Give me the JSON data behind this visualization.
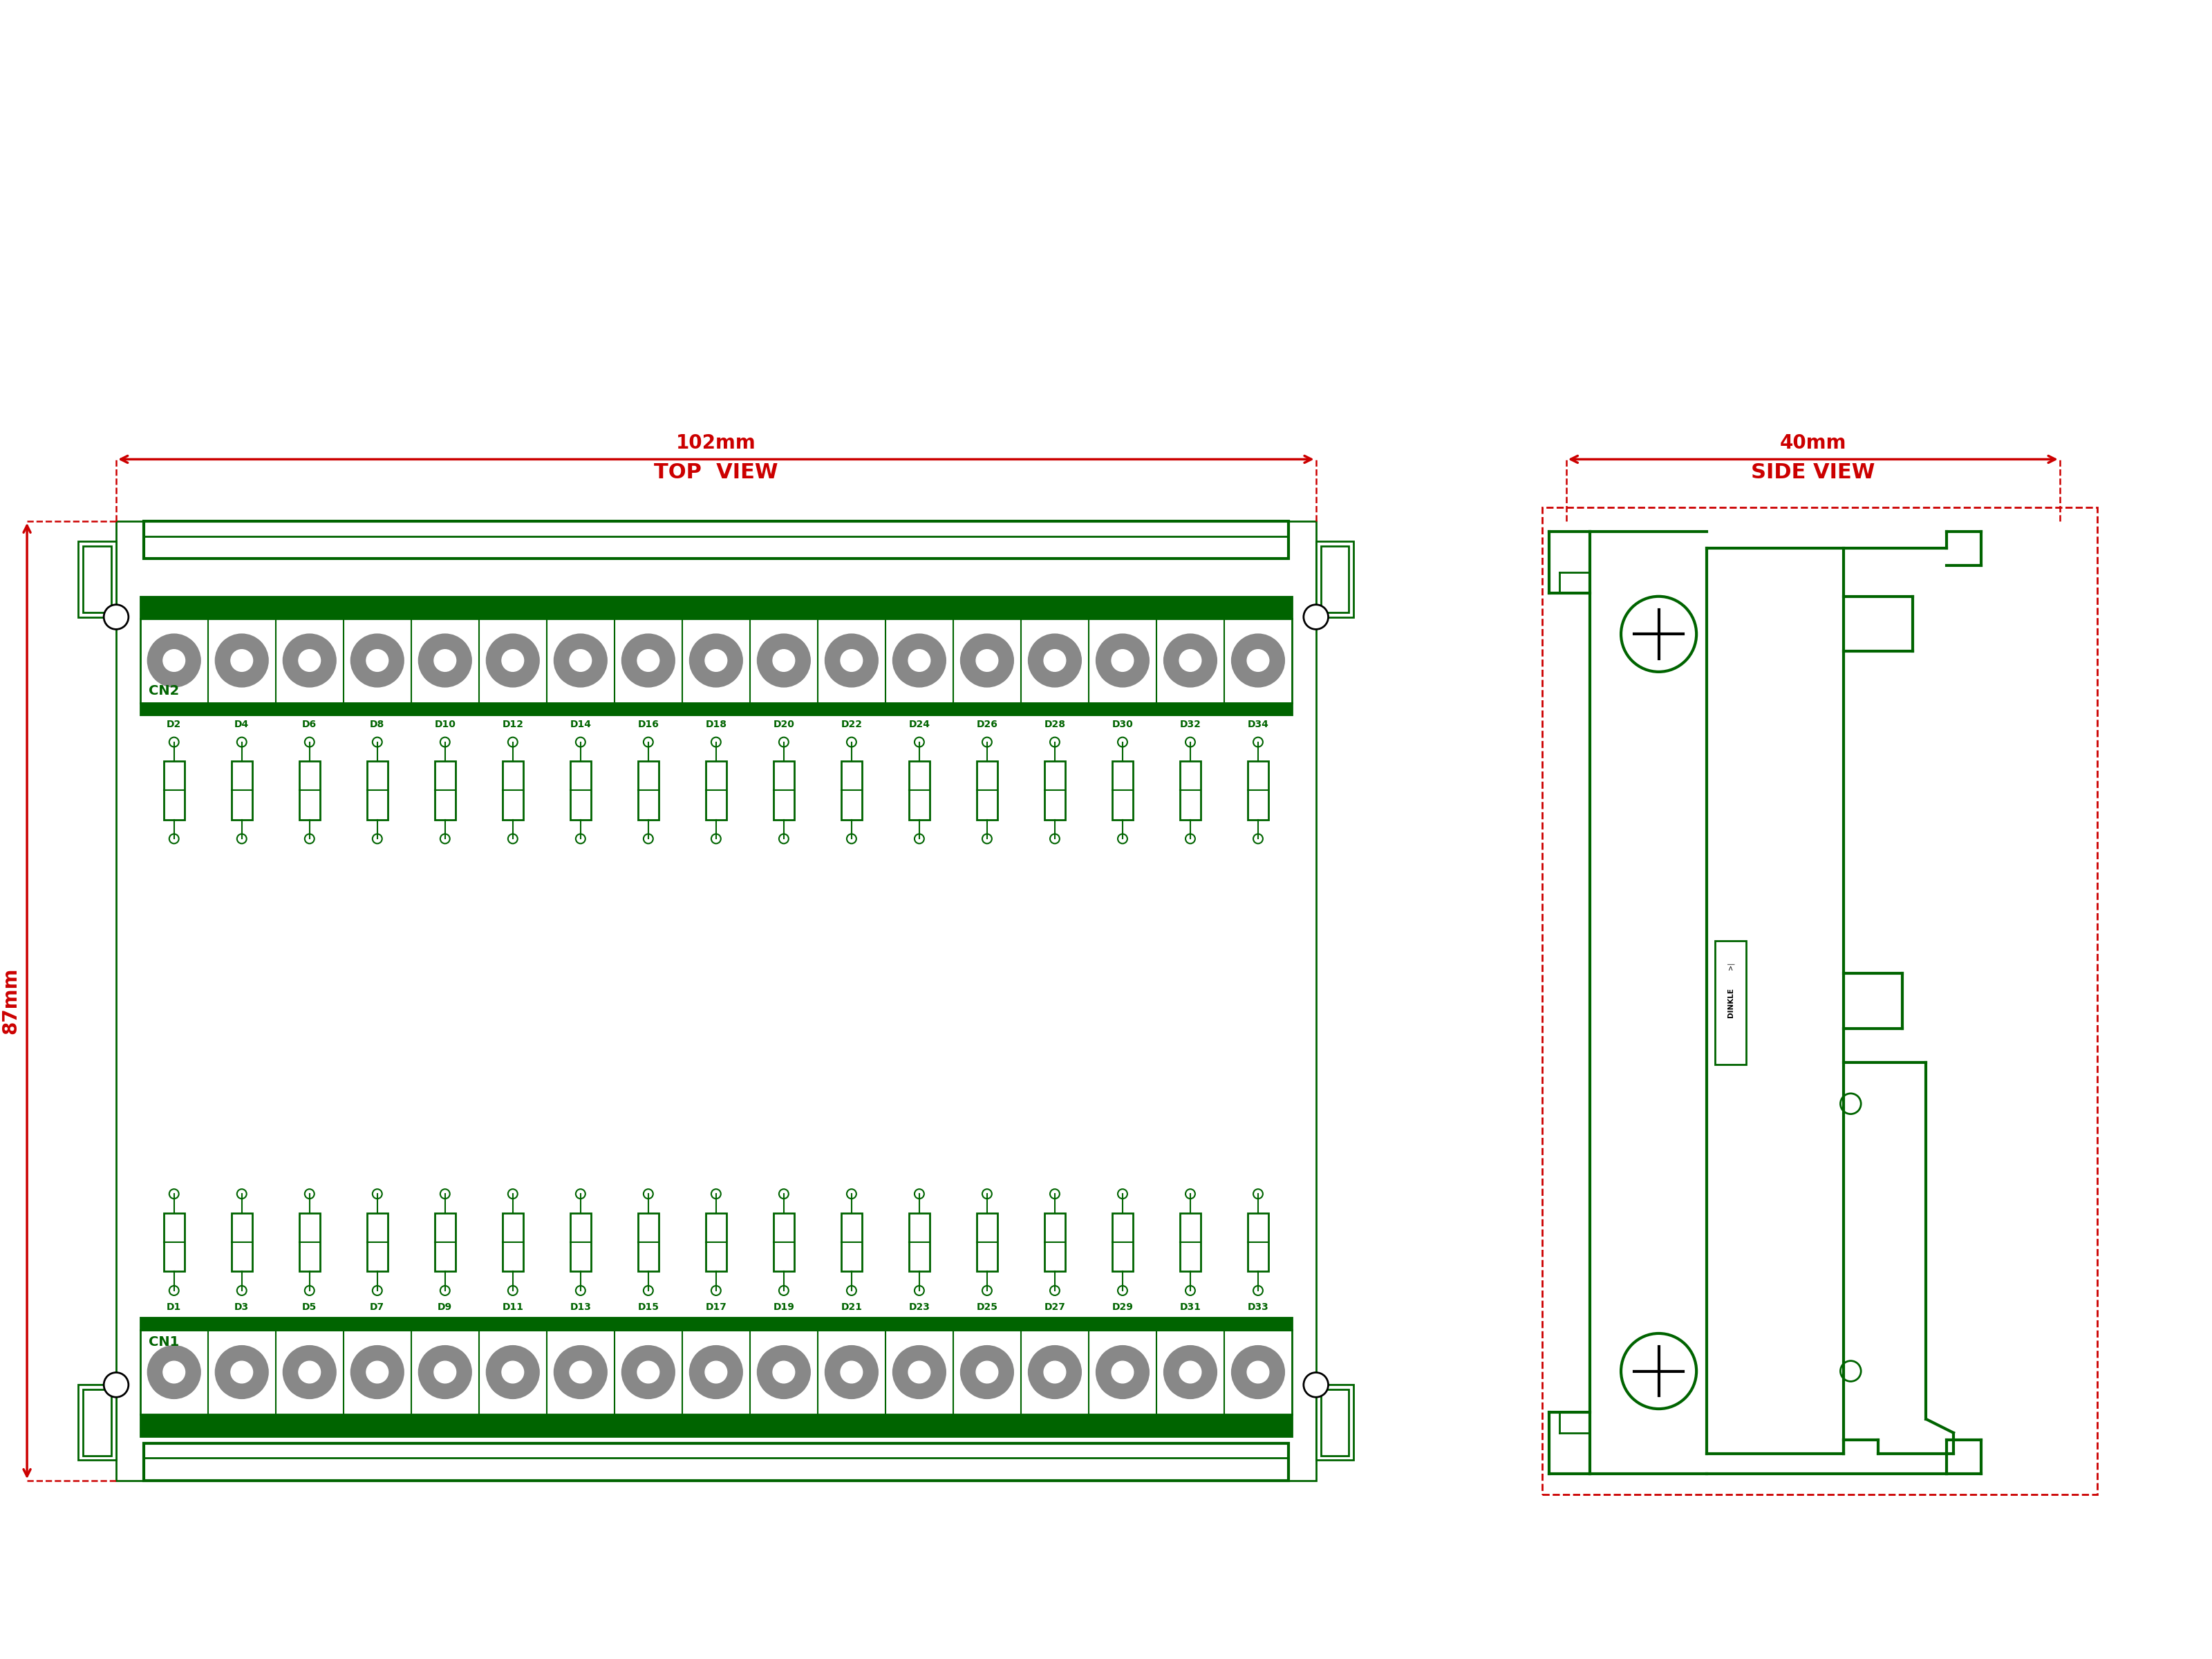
{
  "bg_color": "#ffffff",
  "green": "#006400",
  "red": "#cc0000",
  "gray": "#888888",
  "black": "#000000",
  "top_view_label": "TOP  VIEW",
  "side_view_label": "SIDE VIEW",
  "dim_width_top": "102mm",
  "dim_height_top": "87mm",
  "dim_width_side": "40mm",
  "cn2_label": "CN2",
  "cn1_label": "CN1",
  "diode_top_labels": [
    "D2",
    "D4",
    "D6",
    "D8",
    "D10",
    "D12",
    "D14",
    "D16",
    "D18",
    "D20",
    "D22",
    "D24",
    "D26",
    "D28",
    "D30",
    "D32",
    "D34"
  ],
  "diode_bot_labels": [
    "D1",
    "D3",
    "D5",
    "D7",
    "D9",
    "D11",
    "D13",
    "D15",
    "D17",
    "D19",
    "D21",
    "D23",
    "D25",
    "D27",
    "D29",
    "D31",
    "D33"
  ],
  "n_terminals": 17,
  "n_diodes": 17
}
